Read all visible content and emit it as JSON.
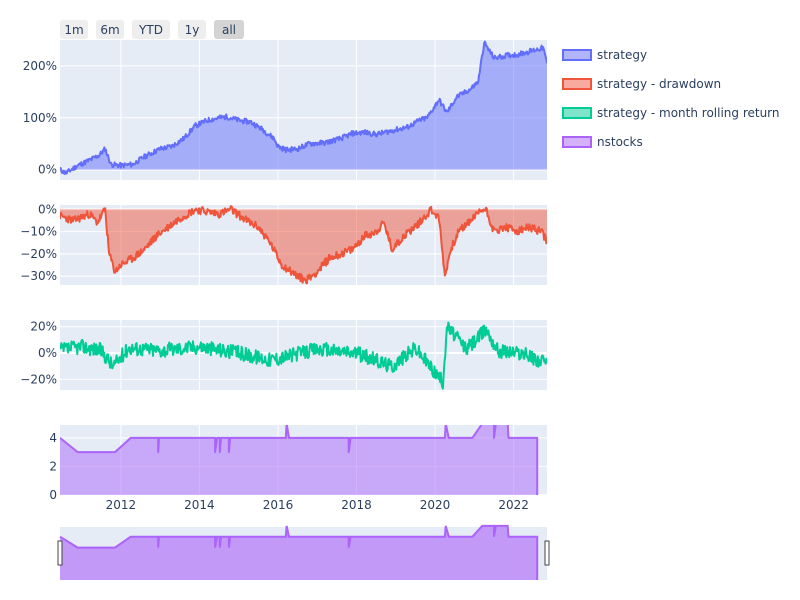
{
  "colors": {
    "strategy": "#636efa",
    "drawdown": "#ef553b",
    "rolling": "#00cc96",
    "nstocks": "#ab63fa",
    "plot_bg": "#e5ecf6",
    "button_bg": "#eeeeee",
    "button_active": "#d4d4d4"
  },
  "range_selector": {
    "buttons": [
      "1m",
      "6m",
      "YTD",
      "1y",
      "all"
    ],
    "active": "all"
  },
  "legend": {
    "placement": "top-right",
    "items": [
      {
        "label": "strategy",
        "color_key": "strategy"
      },
      {
        "label": "strategy - drawdown",
        "color_key": "drawdown"
      },
      {
        "label": "strategy - month rolling return",
        "color_key": "rolling"
      },
      {
        "label": "nstocks",
        "color_key": "nstocks"
      }
    ]
  },
  "chart_data": [
    {
      "type": "area",
      "series_name": "strategy",
      "x_range": [
        2010.45,
        2022.85
      ],
      "y_range": [
        -0.2,
        2.5
      ],
      "y_ticks": [
        0,
        1,
        2
      ],
      "y_tick_labels": [
        "0%",
        "100%",
        "200%"
      ],
      "grid": true,
      "points": [
        [
          2010.45,
          0.0
        ],
        [
          2010.6,
          -0.07
        ],
        [
          2010.9,
          0.08
        ],
        [
          2011.2,
          0.18
        ],
        [
          2011.45,
          0.28
        ],
        [
          2011.6,
          0.4
        ],
        [
          2011.75,
          0.1
        ],
        [
          2012.0,
          0.08
        ],
        [
          2012.3,
          0.1
        ],
        [
          2012.6,
          0.25
        ],
        [
          2013.0,
          0.4
        ],
        [
          2013.3,
          0.45
        ],
        [
          2013.6,
          0.6
        ],
        [
          2013.9,
          0.85
        ],
        [
          2014.2,
          0.95
        ],
        [
          2014.5,
          1.0
        ],
        [
          2014.7,
          1.02
        ],
        [
          2015.0,
          0.95
        ],
        [
          2015.3,
          0.92
        ],
        [
          2015.6,
          0.78
        ],
        [
          2015.9,
          0.6
        ],
        [
          2016.0,
          0.45
        ],
        [
          2016.2,
          0.38
        ],
        [
          2016.5,
          0.4
        ],
        [
          2016.8,
          0.5
        ],
        [
          2017.2,
          0.52
        ],
        [
          2017.6,
          0.6
        ],
        [
          2017.9,
          0.7
        ],
        [
          2018.2,
          0.72
        ],
        [
          2018.5,
          0.68
        ],
        [
          2018.9,
          0.75
        ],
        [
          2019.3,
          0.82
        ],
        [
          2019.6,
          0.95
        ],
        [
          2019.8,
          1.0
        ],
        [
          2020.1,
          1.35
        ],
        [
          2020.3,
          1.1
        ],
        [
          2020.55,
          1.4
        ],
        [
          2020.9,
          1.55
        ],
        [
          2021.1,
          1.7
        ],
        [
          2021.25,
          2.45
        ],
        [
          2021.5,
          2.15
        ],
        [
          2021.8,
          2.2
        ],
        [
          2022.1,
          2.22
        ],
        [
          2022.4,
          2.28
        ],
        [
          2022.6,
          2.32
        ],
        [
          2022.75,
          2.35
        ],
        [
          2022.85,
          2.05
        ]
      ],
      "noise": 0.05,
      "seed": 11
    },
    {
      "type": "area",
      "series_name": "strategy - drawdown",
      "x_range": [
        2010.45,
        2022.85
      ],
      "y_range": [
        -0.34,
        0.02
      ],
      "y_ticks": [
        0,
        -0.1,
        -0.2,
        -0.3
      ],
      "y_tick_labels": [
        "0%",
        "−10%",
        "−20%",
        "−30%"
      ],
      "grid": true,
      "points": [
        [
          2010.45,
          -0.03
        ],
        [
          2010.8,
          -0.05
        ],
        [
          2011.2,
          -0.02
        ],
        [
          2011.4,
          -0.06
        ],
        [
          2011.6,
          0.0
        ],
        [
          2011.7,
          -0.2
        ],
        [
          2011.85,
          -0.28
        ],
        [
          2012.0,
          -0.25
        ],
        [
          2012.3,
          -0.22
        ],
        [
          2012.6,
          -0.18
        ],
        [
          2012.9,
          -0.12
        ],
        [
          2013.2,
          -0.08
        ],
        [
          2013.5,
          -0.04
        ],
        [
          2013.9,
          0.0
        ],
        [
          2014.5,
          -0.02
        ],
        [
          2014.8,
          0.0
        ],
        [
          2015.2,
          -0.05
        ],
        [
          2015.5,
          -0.08
        ],
        [
          2015.8,
          -0.15
        ],
        [
          2016.1,
          -0.25
        ],
        [
          2016.5,
          -0.3
        ],
        [
          2016.7,
          -0.32
        ],
        [
          2017.0,
          -0.28
        ],
        [
          2017.3,
          -0.22
        ],
        [
          2017.6,
          -0.2
        ],
        [
          2017.9,
          -0.18
        ],
        [
          2018.2,
          -0.12
        ],
        [
          2018.5,
          -0.1
        ],
        [
          2018.7,
          -0.06
        ],
        [
          2018.9,
          -0.18
        ],
        [
          2019.2,
          -0.12
        ],
        [
          2019.6,
          -0.06
        ],
        [
          2019.9,
          0.0
        ],
        [
          2020.1,
          -0.04
        ],
        [
          2020.25,
          -0.3
        ],
        [
          2020.4,
          -0.18
        ],
        [
          2020.6,
          -0.1
        ],
        [
          2020.9,
          -0.05
        ],
        [
          2021.2,
          0.0
        ],
        [
          2021.3,
          0.0
        ],
        [
          2021.5,
          -0.1
        ],
        [
          2021.8,
          -0.08
        ],
        [
          2022.1,
          -0.1
        ],
        [
          2022.4,
          -0.08
        ],
        [
          2022.7,
          -0.1
        ],
        [
          2022.85,
          -0.14
        ]
      ],
      "noise": 0.018,
      "seed": 23
    },
    {
      "type": "line",
      "series_name": "strategy - month rolling return",
      "x_range": [
        2010.45,
        2022.85
      ],
      "y_range": [
        -0.28,
        0.25
      ],
      "y_ticks": [
        0.2,
        0,
        -0.2
      ],
      "y_tick_labels": [
        "20%",
        "0%",
        "−20%"
      ],
      "grid": true,
      "points": [
        [
          2010.45,
          0.02
        ],
        [
          2011.0,
          0.05
        ],
        [
          2011.5,
          0.02
        ],
        [
          2011.8,
          -0.1
        ],
        [
          2012.2,
          0.04
        ],
        [
          2013.0,
          0.02
        ],
        [
          2014.0,
          0.05
        ],
        [
          2015.0,
          0.0
        ],
        [
          2015.8,
          -0.05
        ],
        [
          2016.3,
          -0.02
        ],
        [
          2017.0,
          0.03
        ],
        [
          2018.0,
          0.0
        ],
        [
          2018.9,
          -0.1
        ],
        [
          2019.5,
          0.04
        ],
        [
          2020.2,
          -0.22
        ],
        [
          2020.3,
          0.2
        ],
        [
          2020.8,
          0.03
        ],
        [
          2021.3,
          0.18
        ],
        [
          2021.6,
          0.02
        ],
        [
          2022.2,
          0.0
        ],
        [
          2022.85,
          -0.08
        ]
      ],
      "noise": 0.055,
      "seed": 37
    },
    {
      "type": "area",
      "series_name": "nstocks",
      "x_range": [
        2010.45,
        2022.85
      ],
      "y_range": [
        0,
        4.9
      ],
      "y_ticks": [
        0,
        2,
        4
      ],
      "y_tick_labels": [
        "0",
        "2",
        "4"
      ],
      "x_ticks": [
        2012,
        2014,
        2016,
        2018,
        2020,
        2022
      ],
      "x_tick_labels": [
        "2012",
        "2014",
        "2016",
        "2018",
        "2020",
        "2022"
      ],
      "grid": true,
      "points": [
        [
          2010.45,
          4
        ],
        [
          2010.9,
          3
        ],
        [
          2011.35,
          3
        ],
        [
          2011.85,
          3
        ],
        [
          2012.25,
          4
        ],
        [
          2012.95,
          4
        ],
        [
          2012.95,
          3
        ],
        [
          2012.97,
          4
        ],
        [
          2014.4,
          4
        ],
        [
          2014.4,
          3
        ],
        [
          2014.45,
          4
        ],
        [
          2014.52,
          4
        ],
        [
          2014.52,
          3
        ],
        [
          2014.55,
          4
        ],
        [
          2014.75,
          4
        ],
        [
          2014.75,
          3
        ],
        [
          2014.78,
          4
        ],
        [
          2016.2,
          4
        ],
        [
          2016.22,
          5
        ],
        [
          2016.28,
          4
        ],
        [
          2017.8,
          4
        ],
        [
          2017.8,
          3
        ],
        [
          2017.85,
          4
        ],
        [
          2020.25,
          4
        ],
        [
          2020.27,
          5
        ],
        [
          2020.35,
          4
        ],
        [
          2020.95,
          4
        ],
        [
          2021.2,
          5
        ],
        [
          2021.5,
          5
        ],
        [
          2021.5,
          4
        ],
        [
          2021.55,
          5
        ],
        [
          2021.85,
          5
        ],
        [
          2021.87,
          4
        ],
        [
          2022.6,
          4
        ],
        [
          2022.6,
          0
        ]
      ],
      "step": false
    }
  ]
}
